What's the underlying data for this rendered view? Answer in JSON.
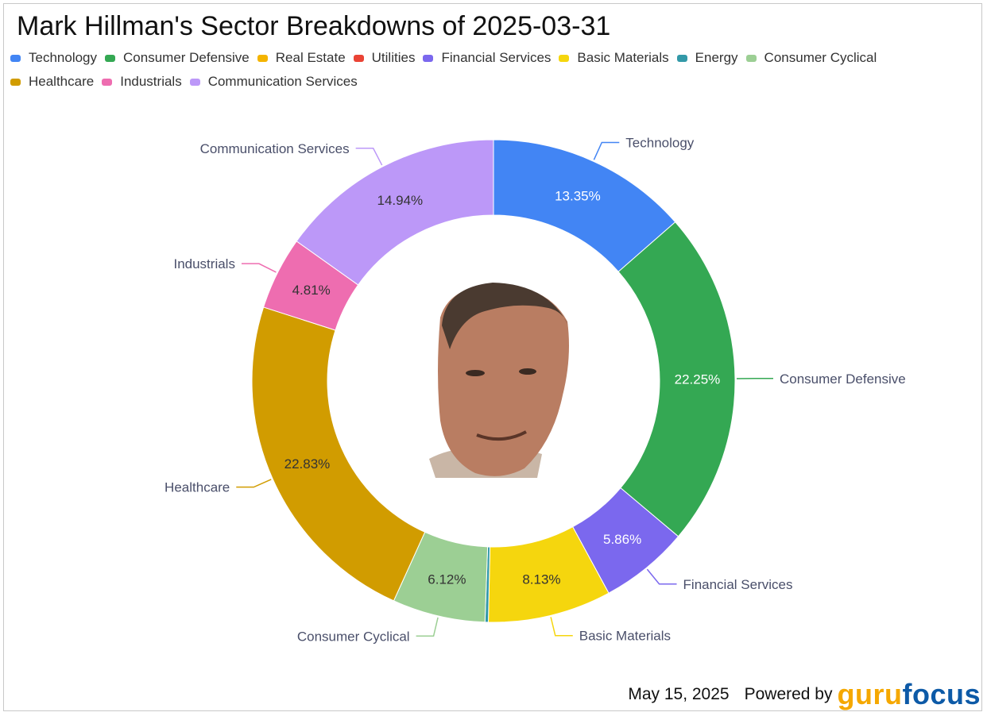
{
  "chart_data": {
    "type": "pie",
    "donut": true,
    "title": "Mark Hillman's Sector Breakdowns of 2025-03-31",
    "categories": [
      "Technology",
      "Consumer Defensive",
      "Real Estate",
      "Utilities",
      "Financial Services",
      "Basic Materials",
      "Energy",
      "Consumer Cyclical",
      "Healthcare",
      "Industrials",
      "Communication Services"
    ],
    "values": [
      13.35,
      22.25,
      0.0,
      0.0,
      5.86,
      8.13,
      0.22,
      6.12,
      22.83,
      4.81,
      14.94
    ],
    "labels": [
      "13.35%",
      "22.25%",
      "",
      "",
      "5.86%",
      "8.13%",
      "",
      "6.12%",
      "22.83%",
      "4.81%",
      "14.94%"
    ],
    "colors": [
      "#4285f4",
      "#34a853",
      "#f4b400",
      "#ea4335",
      "#7b68ee",
      "#f5d60e",
      "#3399a8",
      "#9ccf94",
      "#d19c00",
      "#ee6db0",
      "#bc98f8"
    ],
    "label_text_colors": [
      "#ffffff",
      "#ffffff",
      "#333333",
      "#333333",
      "#ffffff",
      "#333333",
      "#333333",
      "#333333",
      "#333333",
      "#333333",
      "#333333"
    ],
    "outer_label_slices": [
      "Technology",
      "Consumer Defensive",
      "Financial Services",
      "Basic Materials",
      "Consumer Cyclical",
      "Healthcare",
      "Industrials",
      "Communication Services"
    ],
    "legend_position": "top"
  },
  "footer": {
    "date": "May 15, 2025",
    "powered_by": "Powered by",
    "brand_part1": "guru",
    "brand_part2": "focus"
  },
  "avatar": {
    "skin_color": "#b97d62",
    "hair_color": "#4a3a30"
  }
}
